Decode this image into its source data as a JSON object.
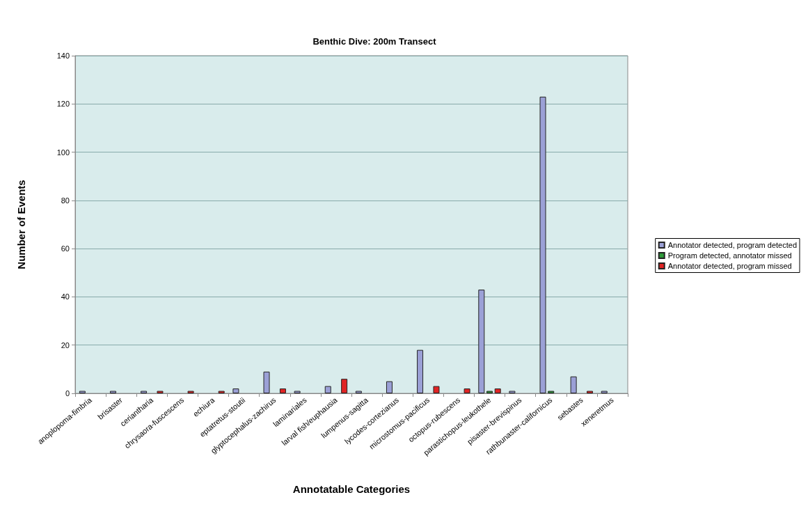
{
  "chart_data": {
    "type": "bar",
    "title": "Benthic Dive: 200m Transect",
    "xlabel": "Annotatable Categories",
    "ylabel": "Number of Events",
    "categories": [
      "anoplopoma-fimbria",
      "brisaster",
      "ceriantharia",
      "chrysaora-fuscescens",
      "echiura",
      "eptatretus-stoutii",
      "glyptocephalus-zachirus",
      "laminariales",
      "larval fish/euphausia",
      "lumpenus-sagitta",
      "lycodes-cortezianus",
      "microstomus-pacificus",
      "octopus-rubescens",
      "parastichopus-leukothele",
      "pisaster-brevispinus",
      "rathbunaster-californicus",
      "sebastes",
      "xeneretmus"
    ],
    "series": [
      {
        "name": "Annotator detected, program detected",
        "color": "#9ba0d6",
        "values": [
          1,
          1,
          1,
          0,
          0,
          2,
          9,
          1,
          3,
          1,
          5,
          18,
          0,
          43,
          1,
          123,
          7,
          1
        ]
      },
      {
        "name": "Program detected, annotator missed",
        "color": "#2e9a3a",
        "values": [
          0,
          0,
          0,
          0,
          0,
          0,
          0,
          0,
          0,
          0,
          0,
          0,
          0,
          1,
          0,
          1,
          0,
          0
        ]
      },
      {
        "name": "Annotator detected, program missed",
        "color": "#e02424",
        "values": [
          0,
          0,
          1,
          1,
          1,
          0,
          2,
          0,
          6,
          0,
          0,
          3,
          2,
          2,
          0,
          0,
          1,
          0
        ]
      }
    ],
    "ylim": [
      0,
      140
    ],
    "yticks": [
      0,
      20,
      40,
      60,
      80,
      100,
      120,
      140
    ],
    "grid": "y",
    "legend": "right"
  }
}
